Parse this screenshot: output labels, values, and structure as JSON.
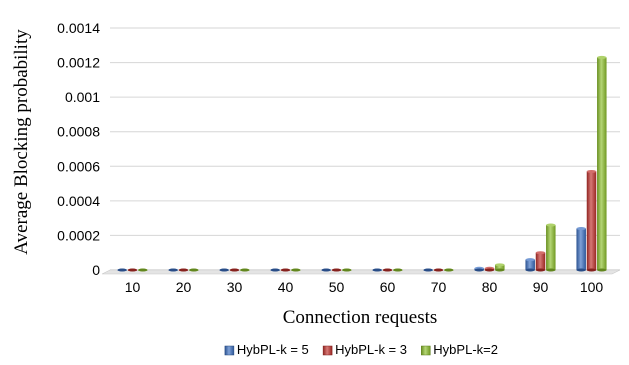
{
  "chart_data": {
    "type": "bar",
    "categories": [
      "10",
      "20",
      "30",
      "40",
      "50",
      "60",
      "70",
      "80",
      "90",
      "100"
    ],
    "series": [
      {
        "name": "HybPL-k = 5",
        "color": "#3a6ec1",
        "values": [
          0,
          0,
          0,
          0,
          0,
          0,
          0,
          1e-05,
          6e-05,
          0.00024
        ]
      },
      {
        "name": "HybPL-k = 3",
        "color": "#c0302b",
        "values": [
          0,
          0,
          0,
          0,
          0,
          0,
          0,
          1e-05,
          0.0001,
          0.00057
        ]
      },
      {
        "name": "HybPL-k=2",
        "color": "#8cbf2b",
        "values": [
          0,
          0,
          0,
          0,
          0,
          0,
          0,
          3e-05,
          0.00026,
          0.00123
        ]
      }
    ],
    "xlabel": "Connection requests",
    "ylabel": "Average Blocking probability",
    "ylim": [
      0,
      0.0014
    ],
    "yticks": [
      0,
      0.0002,
      0.0004,
      0.0006,
      0.0008,
      0.001,
      0.0012,
      0.0014
    ],
    "ytick_labels": [
      "0",
      "0.0002",
      "0.0004",
      "0.0006",
      "0.0008",
      "0.001",
      "0.0012",
      "0.0014"
    ],
    "grid": true,
    "legend_position": "bottom"
  }
}
